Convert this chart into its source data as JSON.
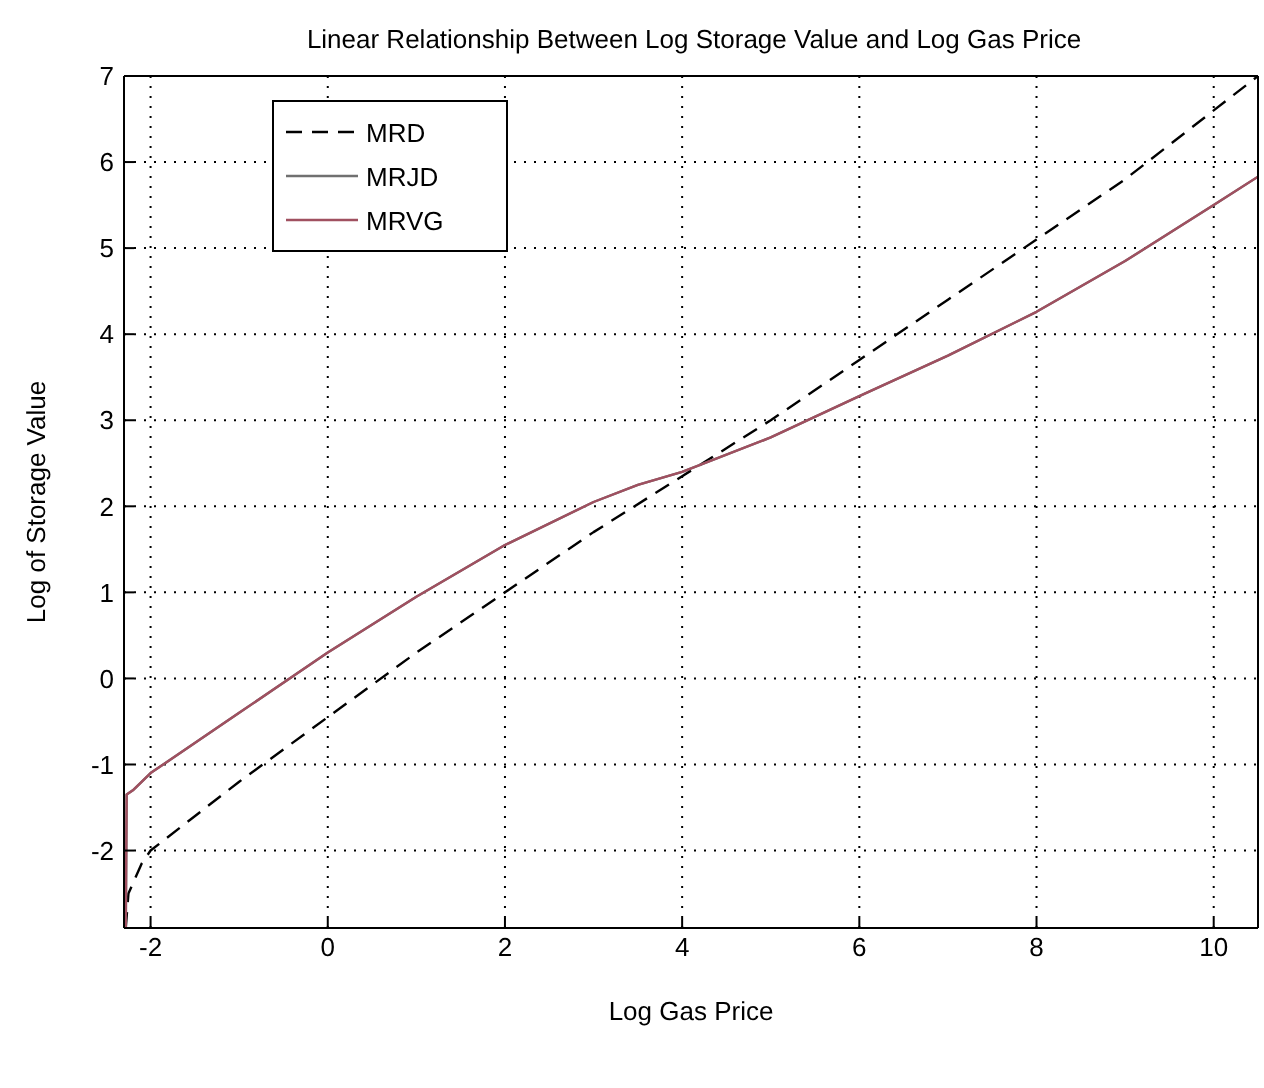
{
  "chart_data": {
    "type": "line",
    "title": "Linear Relationship Between Log Storage Value and Log Gas Price",
    "xlabel": "Log Gas Price",
    "ylabel": "Log of Storage Value",
    "xlim": [
      -2.3,
      10.5
    ],
    "ylim": [
      -2.9,
      7
    ],
    "xticks": [
      -2,
      0,
      2,
      4,
      6,
      8,
      10
    ],
    "yticks": [
      -2,
      -1,
      0,
      1,
      2,
      3,
      4,
      5,
      6,
      7
    ],
    "grid": true,
    "legend": "top left",
    "marker": "none",
    "series": [
      {
        "name": "MRD",
        "color": "#000000",
        "line_style": "dashed",
        "x": [
          -2.28,
          -2.25,
          -2.1,
          -2,
          -1,
          0,
          1,
          2,
          3,
          4,
          5,
          6,
          7,
          8,
          9,
          10,
          10.5
        ],
        "values": [
          -2.9,
          -2.5,
          -2.15,
          -2.0,
          -1.2,
          -0.45,
          0.3,
          1.0,
          1.7,
          2.35,
          3.0,
          3.7,
          4.4,
          5.1,
          5.8,
          6.6,
          7.0
        ]
      },
      {
        "name": "MRJD",
        "color": "#707070",
        "line_style": "solid",
        "x": [
          -2.28,
          -2.27,
          -2.2,
          -2,
          -1,
          0,
          1,
          2,
          3,
          3.5,
          4,
          5,
          6,
          7,
          8,
          9,
          10,
          10.5
        ],
        "values": [
          -2.9,
          -1.35,
          -1.3,
          -1.1,
          -0.4,
          0.3,
          0.95,
          1.55,
          2.05,
          2.25,
          2.4,
          2.8,
          3.28,
          3.75,
          4.26,
          4.85,
          5.5,
          5.83
        ]
      },
      {
        "name": "MRVG",
        "color": "#a05060",
        "line_style": "solid",
        "x": [
          -2.28,
          -2.27,
          -2.2,
          -2,
          -1,
          0,
          1,
          2,
          3,
          3.5,
          4,
          5,
          6,
          7,
          8,
          9,
          10,
          10.5
        ],
        "values": [
          -2.9,
          -1.35,
          -1.3,
          -1.1,
          -0.4,
          0.3,
          0.95,
          1.55,
          2.05,
          2.25,
          2.4,
          2.8,
          3.28,
          3.75,
          4.26,
          4.85,
          5.5,
          5.83
        ]
      }
    ]
  }
}
